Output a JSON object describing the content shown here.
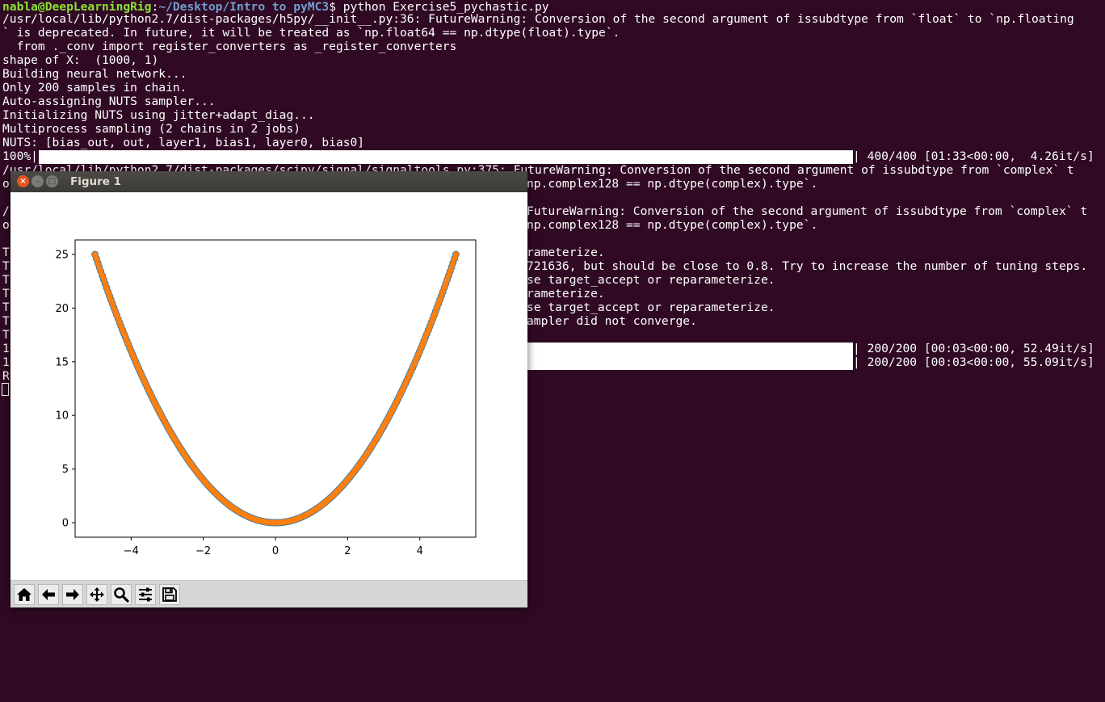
{
  "terminal": {
    "prompt_user": "nabla@DeepLearningRig",
    "prompt_sep": ":",
    "prompt_path": "~/Desktop/Intro to pyMC3",
    "prompt_command": "$ python Exercise5_pychastic.py",
    "lines": [
      "/usr/local/lib/python2.7/dist-packages/h5py/__init__.py:36: FutureWarning: Conversion of the second argument of issubdtype from `float` to `np.floating",
      "` is deprecated. In future, it will be treated as `np.float64 == np.dtype(float).type`.",
      "  from ._conv import register_converters as _register_converters",
      "shape of X:  (1000, 1)",
      "Building neural network...",
      "Only 200 samples in chain.",
      "Auto-assigning NUTS sampler...",
      "Initializing NUTS using jitter+adapt_diag...",
      "Multiprocess sampling (2 chains in 2 jobs)",
      "NUTS: [bias_out, out, layer1, bias1, layer0, bias0]"
    ],
    "progress_main": {
      "label": "100%|",
      "stats": "| 400/400 [01:33<00:00,  4.26it/s]",
      "fraction": 1.0
    },
    "partial_lines_left": [
      "/usr/local/lib/python2.7/dist-packages/scipy/signal/signaltools.py:375: FutureWarning: Conversion of the second argument of issubdtype from `complex` t",
      "o",
      "/",
      "o",
      "T",
      "T",
      "T",
      "T",
      "T",
      "T",
      "T",
      "1",
      "1",
      "R"
    ],
    "partial_lines_right": [
      "np.complex128 == np.dtype(complex).type`.",
      "FutureWarning: Conversion of the second argument of issubdtype from `complex` t",
      "np.complex128 == np.dtype(complex).type`.",
      "rameterize.",
      "721636, but should be close to 0.8. Try to increase the number of tuning steps.",
      "se target_accept or reparameterize.",
      "rameterize.",
      "se target_accept or reparameterize.",
      "ampler did not converge."
    ],
    "progress_chains": [
      {
        "stats": "| 200/200 [00:03<00:00, 52.49it/s]",
        "fraction": 1.0
      },
      {
        "stats": "| 200/200 [00:03<00:00, 55.09it/s]",
        "fraction": 1.0
      }
    ]
  },
  "figure_window": {
    "title": "Figure 1",
    "close_glyph": "×",
    "min_glyph": "–",
    "max_glyph": "□",
    "toolbar_icons": [
      "home-icon",
      "back-arrow-icon",
      "forward-arrow-icon",
      "pan-move-icon",
      "zoom-magnifier-icon",
      "configure-subplots-icon",
      "save-floppy-icon"
    ]
  },
  "chart_data": {
    "type": "scatter",
    "title": "",
    "xlabel": "",
    "ylabel": "",
    "xlim": [
      -5.55,
      5.55
    ],
    "ylim": [
      -1.35,
      26.35
    ],
    "x_ticks": [
      -4,
      -2,
      0,
      2,
      4
    ],
    "y_ticks": [
      0,
      5,
      10,
      15,
      20,
      25
    ],
    "grid": false,
    "x_range": [
      -5,
      5
    ],
    "n_points": 1000,
    "series": [
      {
        "relation": "y = x^2",
        "color": "#1f77b4",
        "style": "markers"
      },
      {
        "relation": "y = x^2 (prediction)",
        "color": "#ff7f0e",
        "style": "markers"
      }
    ]
  }
}
